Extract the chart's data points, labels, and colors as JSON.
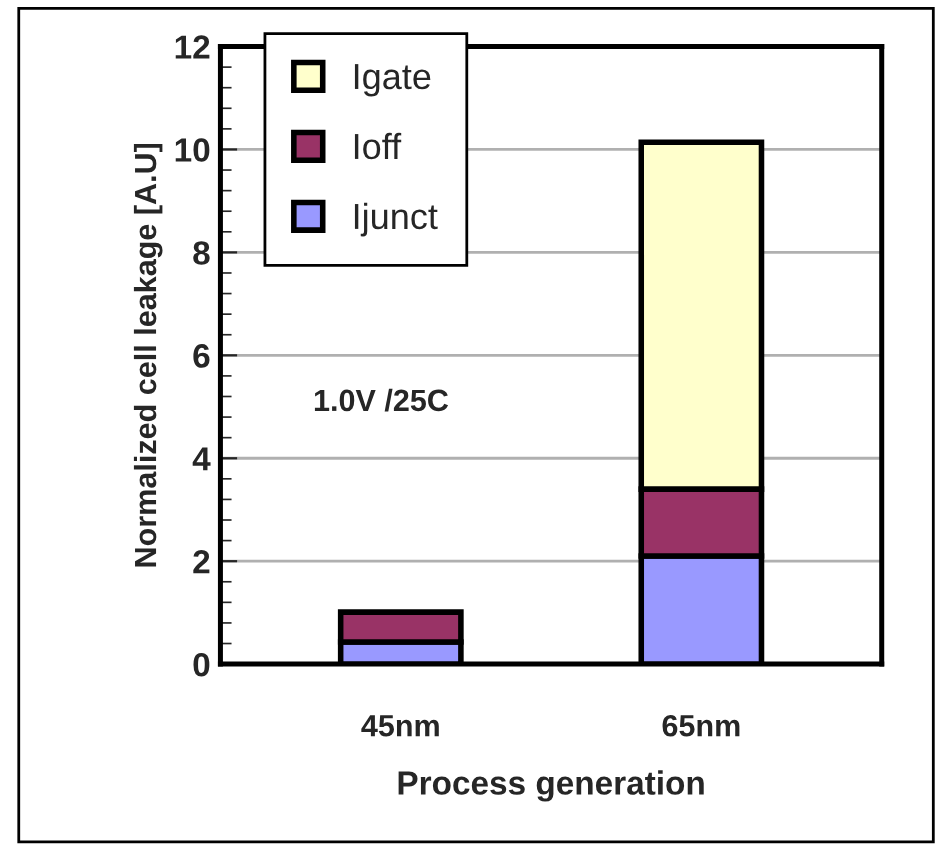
{
  "chart_data": {
    "type": "bar",
    "stacked": true,
    "xlabel": "Process generation",
    "ylabel": "Normalized cell leakage [A.U]",
    "categories": [
      "45nm",
      "65nm"
    ],
    "series": [
      {
        "name": "Ijunct",
        "color": "#9999ff",
        "values": [
          0.43,
          2.1
        ]
      },
      {
        "name": "Ioff",
        "color": "#993366",
        "values": [
          0.58,
          1.3
        ]
      },
      {
        "name": "Igate",
        "color": "#ffffcc",
        "values": [
          null,
          6.74
        ]
      }
    ],
    "ylim": [
      0,
      12
    ],
    "yticks": [
      0,
      2,
      4,
      6,
      8,
      10,
      12
    ],
    "grid": "y",
    "legend": "top left",
    "annotations": [
      "1.0V /25C"
    ]
  }
}
